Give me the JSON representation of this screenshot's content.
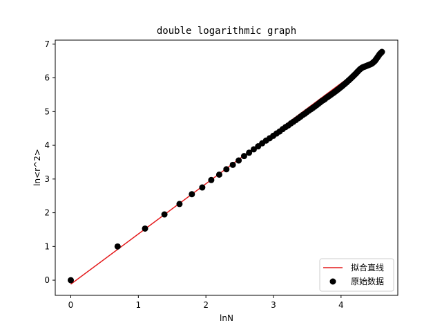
{
  "chart_data": {
    "type": "scatter",
    "title": "double logarithmic graph",
    "xlabel": "lnN",
    "ylabel": "ln<r^2>",
    "xlim": [
      -0.23,
      4.84
    ],
    "ylim": [
      -0.45,
      7.12
    ],
    "xticks": [
      "0",
      "1",
      "2",
      "3",
      "4"
    ],
    "yticks": [
      "0",
      "1",
      "2",
      "3",
      "4",
      "5",
      "6",
      "7"
    ],
    "grid": false,
    "legend_position": "lower-right",
    "series": [
      {
        "name": "拟合直线",
        "kind": "line",
        "color": "#e41a1c",
        "x": [
          0,
          4.605
        ],
        "y": [
          -0.12,
          6.74
        ]
      },
      {
        "name": "原始数据",
        "kind": "scatter",
        "color": "#000000",
        "x": [
          0,
          0.693,
          1.099,
          1.386,
          1.609,
          1.792,
          1.946,
          2.079,
          2.197,
          2.303,
          2.398,
          2.485,
          2.565,
          2.639,
          2.708,
          2.773,
          2.833,
          2.89,
          2.944,
          2.996,
          3.045,
          3.091,
          3.136,
          3.178,
          3.219,
          3.258,
          3.296,
          3.332,
          3.367,
          3.401,
          3.434,
          3.466,
          3.497,
          3.526,
          3.555,
          3.584,
          3.611,
          3.638,
          3.664,
          3.689,
          3.714,
          3.738,
          3.761,
          3.784,
          3.807,
          3.829,
          3.85,
          3.871,
          3.892,
          3.912,
          3.932,
          3.951,
          3.97,
          3.989,
          4.007,
          4.025,
          4.043,
          4.06,
          4.078,
          4.094,
          4.111,
          4.127,
          4.143,
          4.159,
          4.174,
          4.19,
          4.205,
          4.22,
          4.234,
          4.248,
          4.263,
          4.277,
          4.29,
          4.304,
          4.317,
          4.331,
          4.344,
          4.357,
          4.369,
          4.382,
          4.394,
          4.407,
          4.419,
          4.431,
          4.443,
          4.454,
          4.466,
          4.477,
          4.489,
          4.5,
          4.511,
          4.522,
          4.533,
          4.543,
          4.554,
          4.564,
          4.575,
          4.585,
          4.595,
          4.605
        ],
        "y": [
          0.0,
          1.0,
          1.53,
          1.95,
          2.26,
          2.55,
          2.75,
          2.97,
          3.13,
          3.29,
          3.42,
          3.55,
          3.68,
          3.78,
          3.88,
          3.97,
          4.06,
          4.14,
          4.21,
          4.28,
          4.35,
          4.41,
          4.48,
          4.54,
          4.59,
          4.65,
          4.7,
          4.75,
          4.8,
          4.85,
          4.9,
          4.94,
          4.99,
          5.03,
          5.07,
          5.11,
          5.15,
          5.19,
          5.23,
          5.27,
          5.31,
          5.34,
          5.37,
          5.41,
          5.44,
          5.47,
          5.5,
          5.53,
          5.56,
          5.59,
          5.62,
          5.65,
          5.68,
          5.71,
          5.74,
          5.77,
          5.8,
          5.83,
          5.86,
          5.89,
          5.92,
          5.95,
          5.98,
          6.01,
          6.04,
          6.07,
          6.1,
          6.13,
          6.16,
          6.19,
          6.22,
          6.25,
          6.27,
          6.29,
          6.31,
          6.32,
          6.33,
          6.34,
          6.35,
          6.36,
          6.37,
          6.38,
          6.39,
          6.4,
          6.41,
          6.42,
          6.44,
          6.46,
          6.48,
          6.5,
          6.53,
          6.56,
          6.59,
          6.62,
          6.65,
          6.68,
          6.71,
          6.73,
          6.75,
          6.77
        ]
      }
    ]
  }
}
